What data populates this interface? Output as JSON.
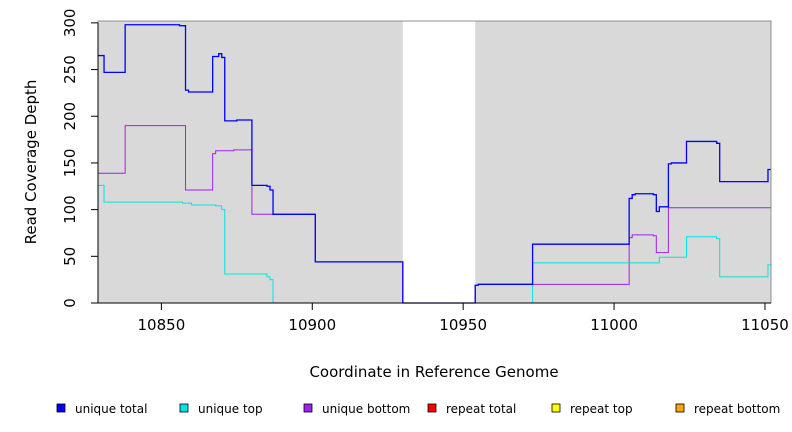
{
  "chart_data": {
    "type": "line",
    "xlabel": "Coordinate in Reference Genome",
    "ylabel": "Read Coverage Depth",
    "xlim": [
      10829,
      11052
    ],
    "ylim": [
      0,
      302
    ],
    "x_ticks": [
      10850,
      10900,
      10950,
      11000,
      11050
    ],
    "y_ticks": [
      0,
      50,
      100,
      150,
      200,
      250,
      300
    ],
    "background_color": "#d9d9d9",
    "gap_region": [
      10930,
      10954
    ],
    "legend_position": "bottom",
    "series": [
      {
        "name": "unique total",
        "color": "#0000ff",
        "points": [
          [
            10829,
            265
          ],
          [
            10831,
            265
          ],
          [
            10831,
            247
          ],
          [
            10838,
            247
          ],
          [
            10838,
            298
          ],
          [
            10856,
            298
          ],
          [
            10856,
            297
          ],
          [
            10858,
            297
          ],
          [
            10858,
            228
          ],
          [
            10859,
            228
          ],
          [
            10859,
            226
          ],
          [
            10867,
            226
          ],
          [
            10867,
            264
          ],
          [
            10869,
            264
          ],
          [
            10869,
            267
          ],
          [
            10870,
            267
          ],
          [
            10870,
            263
          ],
          [
            10871,
            263
          ],
          [
            10871,
            195
          ],
          [
            10875,
            195
          ],
          [
            10875,
            196
          ],
          [
            10880,
            196
          ],
          [
            10880,
            126
          ],
          [
            10885,
            126
          ],
          [
            10885,
            125
          ],
          [
            10886,
            125
          ],
          [
            10886,
            121
          ],
          [
            10887,
            121
          ],
          [
            10887,
            95
          ],
          [
            10901,
            95
          ],
          [
            10901,
            44
          ],
          [
            10930,
            44
          ],
          [
            10930,
            0
          ],
          [
            10954,
            0
          ],
          [
            10954,
            19
          ],
          [
            10955,
            19
          ],
          [
            10955,
            20
          ],
          [
            10973,
            20
          ],
          [
            10973,
            63
          ],
          [
            11005,
            63
          ],
          [
            11005,
            112
          ],
          [
            11006,
            112
          ],
          [
            11006,
            116
          ],
          [
            11007,
            116
          ],
          [
            11007,
            117
          ],
          [
            11013,
            117
          ],
          [
            11013,
            116
          ],
          [
            11014,
            116
          ],
          [
            11014,
            98
          ],
          [
            11015,
            98
          ],
          [
            11015,
            103
          ],
          [
            11018,
            103
          ],
          [
            11018,
            149
          ],
          [
            11019,
            149
          ],
          [
            11019,
            150
          ],
          [
            11024,
            150
          ],
          [
            11024,
            173
          ],
          [
            11034,
            173
          ],
          [
            11034,
            171
          ],
          [
            11035,
            171
          ],
          [
            11035,
            130
          ],
          [
            11051,
            130
          ],
          [
            11051,
            143
          ],
          [
            11052,
            143
          ]
        ]
      },
      {
        "name": "unique top",
        "color": "#00e5e5",
        "points": [
          [
            10829,
            126
          ],
          [
            10831,
            126
          ],
          [
            10831,
            108
          ],
          [
            10857,
            108
          ],
          [
            10857,
            107
          ],
          [
            10860,
            107
          ],
          [
            10860,
            105
          ],
          [
            10868,
            105
          ],
          [
            10868,
            104
          ],
          [
            10870,
            104
          ],
          [
            10870,
            100
          ],
          [
            10871,
            100
          ],
          [
            10871,
            31
          ],
          [
            10885,
            31
          ],
          [
            10885,
            28
          ],
          [
            10886,
            28
          ],
          [
            10886,
            25
          ],
          [
            10887,
            25
          ],
          [
            10887,
            0
          ],
          [
            10973,
            0
          ],
          [
            10973,
            43
          ],
          [
            11015,
            43
          ],
          [
            11015,
            49
          ],
          [
            11024,
            49
          ],
          [
            11024,
            71
          ],
          [
            11034,
            71
          ],
          [
            11034,
            69
          ],
          [
            11035,
            69
          ],
          [
            11035,
            28
          ],
          [
            11051,
            28
          ],
          [
            11051,
            41
          ],
          [
            11052,
            41
          ]
        ]
      },
      {
        "name": "unique bottom",
        "color": "#a020f0",
        "points": [
          [
            10829,
            139
          ],
          [
            10838,
            139
          ],
          [
            10838,
            190
          ],
          [
            10858,
            190
          ],
          [
            10858,
            121
          ],
          [
            10867,
            121
          ],
          [
            10867,
            160
          ],
          [
            10868,
            160
          ],
          [
            10868,
            163
          ],
          [
            10874,
            163
          ],
          [
            10874,
            164
          ],
          [
            10880,
            164
          ],
          [
            10880,
            95
          ],
          [
            10901,
            95
          ],
          [
            10901,
            44
          ],
          [
            10930,
            44
          ],
          [
            10930,
            0
          ],
          [
            10954,
            0
          ],
          [
            10954,
            19
          ],
          [
            10955,
            19
          ],
          [
            10955,
            20
          ],
          [
            11005,
            20
          ],
          [
            11005,
            70
          ],
          [
            11006,
            70
          ],
          [
            11006,
            73
          ],
          [
            11013,
            73
          ],
          [
            11013,
            72
          ],
          [
            11014,
            72
          ],
          [
            11014,
            54
          ],
          [
            11018,
            54
          ],
          [
            11018,
            102
          ],
          [
            11052,
            102
          ]
        ]
      },
      {
        "name": "repeat total",
        "color": "#ff0000",
        "points": [
          [
            10829,
            0
          ],
          [
            11052,
            0
          ]
        ]
      },
      {
        "name": "repeat top",
        "color": "#ffff00",
        "points": [
          [
            10829,
            0
          ],
          [
            11052,
            0
          ]
        ]
      },
      {
        "name": "repeat bottom",
        "color": "#ffa500",
        "points": [
          [
            10829,
            0
          ],
          [
            11052,
            0
          ]
        ]
      }
    ]
  }
}
